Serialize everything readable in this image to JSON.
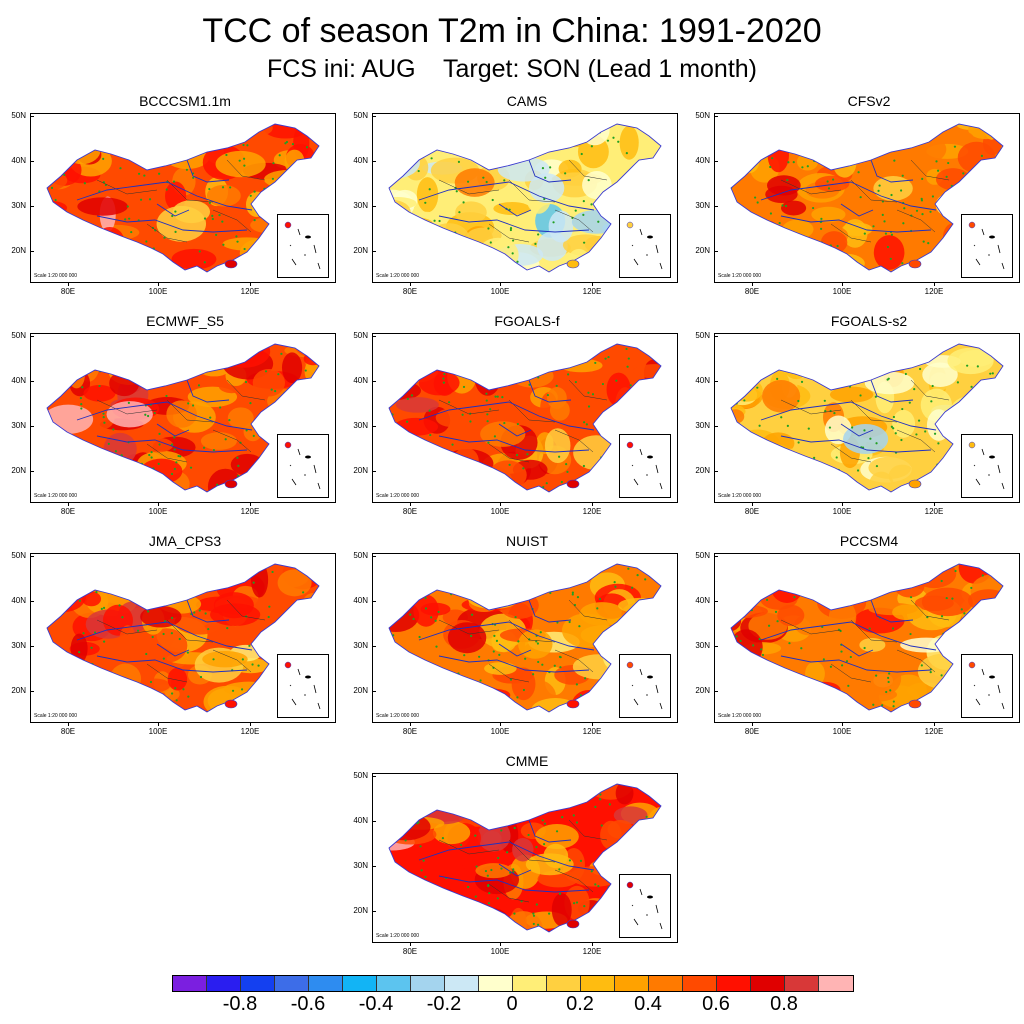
{
  "title": "TCC of season T2m in China: 1991-2020",
  "subtitle": "FCS ini: AUG    Target: SON (Lead 1 month)",
  "axis": {
    "yticks": [
      "50N",
      "40N",
      "30N",
      "20N"
    ],
    "xticks": [
      "80E",
      "100E",
      "120E"
    ]
  },
  "scale_text": "Scale 1:20 000 000",
  "panels": [
    {
      "name": "BCCCSM1.1m",
      "level": 0.55
    },
    {
      "name": "CAMS",
      "level": 0.05
    },
    {
      "name": "CFSv2",
      "level": 0.4
    },
    {
      "name": "ECMWF_S5",
      "level": 0.55
    },
    {
      "name": "FGOALS-f",
      "level": 0.55
    },
    {
      "name": "FGOALS-s2",
      "level": 0.15
    },
    {
      "name": "JMA_CPS3",
      "level": 0.5
    },
    {
      "name": "NUIST",
      "level": 0.45
    },
    {
      "name": "PCCSM4",
      "level": 0.4
    },
    {
      "name": "CMME",
      "level": 0.6
    }
  ],
  "colorbar": {
    "colors": [
      "#7b1fe0",
      "#2a1ef0",
      "#1440f0",
      "#3d6de8",
      "#2e8cf0",
      "#12b4f5",
      "#5cc4ef",
      "#a4d4ee",
      "#cce8f5",
      "#ffffcc",
      "#ffee77",
      "#ffd040",
      "#ffbc10",
      "#ffa200",
      "#ff7a00",
      "#ff4a00",
      "#ff1000",
      "#e00000",
      "#d83838",
      "#ffb4b4"
    ],
    "labels": [
      "-0.8",
      "-0.6",
      "-0.4",
      "-0.2",
      "0",
      "0.2",
      "0.4",
      "0.6",
      "0.8"
    ]
  }
}
